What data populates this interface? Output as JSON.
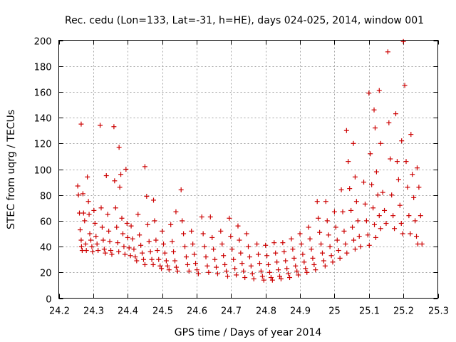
{
  "chart_data": {
    "type": "scatter",
    "title": "Rec. cedu (Lon=133, Lat=-31, h=HE), days 024-025, 2014, window 001",
    "xlabel": "GPS time / Days of year 2014",
    "ylabel": "STEC from uqrg / TECUs",
    "xlim": [
      24.2,
      25.3
    ],
    "ylim": [
      0,
      200
    ],
    "xticks": [
      24.2,
      24.3,
      24.4,
      24.5,
      24.6,
      24.7,
      24.8,
      24.9,
      25,
      25.1,
      25.2,
      25.3
    ],
    "xtick_labels": [
      "24.2",
      "24.3",
      "24.4",
      "24.5",
      "24.6",
      "24.7",
      "24.8",
      "24.9",
      "25",
      "25.1",
      "25.2",
      "25.3"
    ],
    "yticks": [
      0,
      20,
      40,
      60,
      80,
      100,
      120,
      140,
      160,
      180,
      200
    ],
    "ytick_labels": [
      "0",
      "20",
      "40",
      "60",
      "80",
      "100",
      "120",
      "140",
      "160",
      "180",
      "200"
    ],
    "grid": true,
    "marker": "+",
    "color": "#cc0000",
    "series": [
      {
        "name": "STEC",
        "points": [
          [
            24.255,
            87
          ],
          [
            24.257,
            80
          ],
          [
            24.26,
            66
          ],
          [
            24.262,
            53
          ],
          [
            24.265,
            45
          ],
          [
            24.266,
            40
          ],
          [
            24.268,
            37
          ],
          [
            24.265,
            135
          ],
          [
            24.27,
            81
          ],
          [
            24.272,
            66
          ],
          [
            24.275,
            60
          ],
          [
            24.278,
            42
          ],
          [
            24.28,
            37
          ],
          [
            24.283,
            94
          ],
          [
            24.286,
            75
          ],
          [
            24.288,
            65
          ],
          [
            24.29,
            50
          ],
          [
            24.293,
            45
          ],
          [
            24.296,
            40
          ],
          [
            24.298,
            36
          ],
          [
            24.302,
            68
          ],
          [
            24.305,
            58
          ],
          [
            24.308,
            48
          ],
          [
            24.311,
            42
          ],
          [
            24.314,
            37
          ],
          [
            24.32,
            134
          ],
          [
            24.323,
            70
          ],
          [
            24.326,
            55
          ],
          [
            24.329,
            45
          ],
          [
            24.332,
            38
          ],
          [
            24.335,
            35
          ],
          [
            24.338,
            95
          ],
          [
            24.342,
            65
          ],
          [
            24.345,
            52
          ],
          [
            24.348,
            44
          ],
          [
            24.351,
            37
          ],
          [
            24.354,
            34
          ],
          [
            24.36,
            133
          ],
          [
            24.362,
            91
          ],
          [
            24.365,
            70
          ],
          [
            24.368,
            55
          ],
          [
            24.371,
            43
          ],
          [
            24.374,
            36
          ],
          [
            24.375,
            117
          ],
          [
            24.377,
            86
          ],
          [
            24.38,
            96
          ],
          [
            24.383,
            62
          ],
          [
            24.386,
            50
          ],
          [
            24.389,
            40
          ],
          [
            24.392,
            34
          ],
          [
            24.395,
            100
          ],
          [
            24.398,
            58
          ],
          [
            24.4,
            47
          ],
          [
            24.404,
            39
          ],
          [
            24.408,
            33
          ],
          [
            24.41,
            56
          ],
          [
            24.414,
            46
          ],
          [
            24.418,
            38
          ],
          [
            24.422,
            32
          ],
          [
            24.426,
            29
          ],
          [
            24.43,
            65
          ],
          [
            24.434,
            49
          ],
          [
            24.438,
            41
          ],
          [
            24.442,
            35
          ],
          [
            24.446,
            30
          ],
          [
            24.45,
            26
          ],
          [
            24.45,
            102
          ],
          [
            24.455,
            79
          ],
          [
            24.458,
            57
          ],
          [
            24.462,
            44
          ],
          [
            24.466,
            36
          ],
          [
            24.47,
            30
          ],
          [
            24.474,
            26
          ],
          [
            24.475,
            76
          ],
          [
            24.478,
            60
          ],
          [
            24.482,
            45
          ],
          [
            24.486,
            37
          ],
          [
            24.49,
            30
          ],
          [
            24.494,
            25
          ],
          [
            24.498,
            23
          ],
          [
            24.5,
            52
          ],
          [
            24.504,
            42
          ],
          [
            24.508,
            35
          ],
          [
            24.512,
            29
          ],
          [
            24.516,
            25
          ],
          [
            24.52,
            22
          ],
          [
            24.525,
            57
          ],
          [
            24.529,
            44
          ],
          [
            24.533,
            36
          ],
          [
            24.537,
            29
          ],
          [
            24.541,
            24
          ],
          [
            24.545,
            21
          ],
          [
            24.54,
            67
          ],
          [
            24.555,
            84
          ],
          [
            24.558,
            60
          ],
          [
            24.562,
            50
          ],
          [
            24.566,
            40
          ],
          [
            24.57,
            32
          ],
          [
            24.574,
            26
          ],
          [
            24.578,
            21
          ],
          [
            24.585,
            52
          ],
          [
            24.589,
            42
          ],
          [
            24.593,
            34
          ],
          [
            24.597,
            27
          ],
          [
            24.601,
            22
          ],
          [
            24.605,
            19
          ],
          [
            24.615,
            63
          ],
          [
            24.619,
            50
          ],
          [
            24.623,
            40
          ],
          [
            24.627,
            32
          ],
          [
            24.631,
            25
          ],
          [
            24.635,
            20
          ],
          [
            24.64,
            63
          ],
          [
            24.645,
            47
          ],
          [
            24.649,
            38
          ],
          [
            24.653,
            30
          ],
          [
            24.657,
            24
          ],
          [
            24.661,
            19
          ],
          [
            24.67,
            52
          ],
          [
            24.674,
            42
          ],
          [
            24.678,
            33
          ],
          [
            24.682,
            26
          ],
          [
            24.686,
            21
          ],
          [
            24.69,
            17
          ],
          [
            24.695,
            62
          ],
          [
            24.699,
            48
          ],
          [
            24.703,
            38
          ],
          [
            24.707,
            30
          ],
          [
            24.711,
            23
          ],
          [
            24.715,
            18
          ],
          [
            24.72,
            56
          ],
          [
            24.724,
            45
          ],
          [
            24.728,
            35
          ],
          [
            24.732,
            27
          ],
          [
            24.736,
            21
          ],
          [
            24.74,
            16
          ],
          [
            24.745,
            50
          ],
          [
            24.75,
            40
          ],
          [
            24.754,
            32
          ],
          [
            24.758,
            25
          ],
          [
            24.762,
            19
          ],
          [
            24.766,
            15
          ],
          [
            24.775,
            42
          ],
          [
            24.779,
            34
          ],
          [
            24.783,
            27
          ],
          [
            24.787,
            21
          ],
          [
            24.791,
            17
          ],
          [
            24.795,
            14
          ],
          [
            24.8,
            41
          ],
          [
            24.804,
            33
          ],
          [
            24.808,
            26
          ],
          [
            24.812,
            20
          ],
          [
            24.816,
            16
          ],
          [
            24.82,
            14
          ],
          [
            24.825,
            43
          ],
          [
            24.829,
            35
          ],
          [
            24.833,
            28
          ],
          [
            24.837,
            22
          ],
          [
            24.841,
            17
          ],
          [
            24.845,
            15
          ],
          [
            24.85,
            43
          ],
          [
            24.854,
            36
          ],
          [
            24.858,
            29
          ],
          [
            24.862,
            23
          ],
          [
            24.866,
            19
          ],
          [
            24.87,
            16
          ],
          [
            24.875,
            46
          ],
          [
            24.879,
            38
          ],
          [
            24.883,
            31
          ],
          [
            24.887,
            25
          ],
          [
            24.891,
            21
          ],
          [
            24.895,
            18
          ],
          [
            24.9,
            50
          ],
          [
            24.904,
            42
          ],
          [
            24.908,
            34
          ],
          [
            24.912,
            28
          ],
          [
            24.916,
            23
          ],
          [
            24.92,
            20
          ],
          [
            24.925,
            55
          ],
          [
            24.929,
            46
          ],
          [
            24.933,
            38
          ],
          [
            24.937,
            31
          ],
          [
            24.941,
            26
          ],
          [
            24.945,
            22
          ],
          [
            24.95,
            75
          ],
          [
            24.953,
            62
          ],
          [
            24.957,
            51
          ],
          [
            24.961,
            42
          ],
          [
            24.965,
            35
          ],
          [
            24.969,
            29
          ],
          [
            24.973,
            25
          ],
          [
            24.975,
            75
          ],
          [
            24.979,
            60
          ],
          [
            24.983,
            49
          ],
          [
            24.987,
            40
          ],
          [
            24.991,
            33
          ],
          [
            24.995,
            28
          ],
          [
            25.0,
            67
          ],
          [
            25.004,
            55
          ],
          [
            25.008,
            45
          ],
          [
            25.012,
            37
          ],
          [
            25.016,
            31
          ],
          [
            25.02,
            84
          ],
          [
            25.024,
            67
          ],
          [
            25.028,
            52
          ],
          [
            25.032,
            42
          ],
          [
            25.036,
            35
          ],
          [
            25.035,
            130
          ],
          [
            25.04,
            106
          ],
          [
            25.044,
            85
          ],
          [
            25.048,
            68
          ],
          [
            25.052,
            55
          ],
          [
            25.056,
            45
          ],
          [
            25.06,
            38
          ],
          [
            25.055,
            120
          ],
          [
            25.06,
            94
          ],
          [
            25.064,
            75
          ],
          [
            25.068,
            60
          ],
          [
            25.072,
            48
          ],
          [
            25.076,
            40
          ],
          [
            25.085,
            90
          ],
          [
            25.089,
            73
          ],
          [
            25.093,
            60
          ],
          [
            25.097,
            49
          ],
          [
            25.101,
            41
          ],
          [
            25.1,
            159
          ],
          [
            25.104,
            112
          ],
          [
            25.108,
            88
          ],
          [
            25.112,
            70
          ],
          [
            25.116,
            57
          ],
          [
            25.12,
            47
          ],
          [
            25.115,
            146
          ],
          [
            25.118,
            132
          ],
          [
            25.122,
            98
          ],
          [
            25.126,
            80
          ],
          [
            25.13,
            64
          ],
          [
            25.134,
            54
          ],
          [
            25.13,
            161
          ],
          [
            25.134,
            120
          ],
          [
            25.14,
            82
          ],
          [
            25.145,
            68
          ],
          [
            25.15,
            58
          ],
          [
            25.155,
            191
          ],
          [
            25.158,
            136
          ],
          [
            25.162,
            108
          ],
          [
            25.166,
            80
          ],
          [
            25.17,
            64
          ],
          [
            25.174,
            54
          ],
          [
            25.178,
            143
          ],
          [
            25.182,
            106
          ],
          [
            25.186,
            92
          ],
          [
            25.19,
            72
          ],
          [
            25.194,
            58
          ],
          [
            25.198,
            50
          ],
          [
            25.195,
            122
          ],
          [
            25.2,
            199
          ],
          [
            25.204,
            165
          ],
          [
            25.208,
            106
          ],
          [
            25.212,
            86
          ],
          [
            25.216,
            64
          ],
          [
            25.22,
            50
          ],
          [
            25.222,
            127
          ],
          [
            25.226,
            96
          ],
          [
            25.23,
            78
          ],
          [
            25.234,
            60
          ],
          [
            25.238,
            48
          ],
          [
            25.242,
            42
          ],
          [
            25.24,
            101
          ],
          [
            25.245,
            86
          ],
          [
            25.25,
            64
          ],
          [
            25.254,
            42
          ]
        ]
      }
    ]
  }
}
